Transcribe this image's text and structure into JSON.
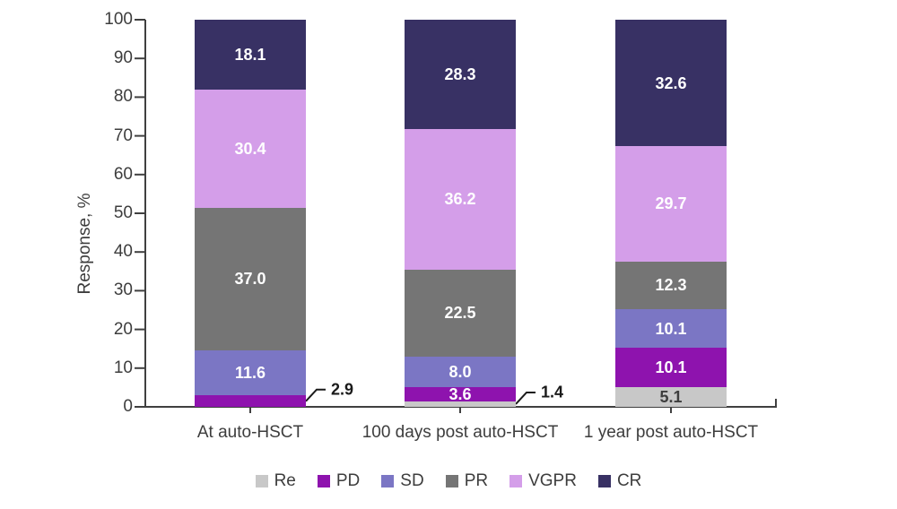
{
  "chart_data": {
    "type": "bar",
    "subtype": "stacked-vertical",
    "title": "",
    "ylabel": "Response, %",
    "xlabel": "",
    "ylim": [
      0,
      100
    ],
    "yticks": [
      0,
      10,
      20,
      30,
      40,
      50,
      60,
      70,
      80,
      90,
      100
    ],
    "grid": false,
    "legend_position": "bottom",
    "categories": [
      "At auto-HSCT",
      "100 days post auto-HSCT",
      "1 year post auto-HSCT"
    ],
    "series": [
      {
        "name": "Re",
        "color": "#c8c8c8",
        "label_color": "#3d3d3d",
        "values": [
          null,
          1.4,
          5.1
        ]
      },
      {
        "name": "PD",
        "color": "#8e13ae",
        "label_color": "#ffffff",
        "values": [
          2.9,
          3.6,
          10.1
        ]
      },
      {
        "name": "SD",
        "color": "#7b76c4",
        "label_color": "#ffffff",
        "values": [
          11.6,
          8.0,
          10.1
        ]
      },
      {
        "name": "PR",
        "color": "#757575",
        "label_color": "#ffffff",
        "values": [
          37.0,
          22.5,
          12.3
        ]
      },
      {
        "name": "VGPR",
        "color": "#d49ee9",
        "label_color": "#ffffff",
        "values": [
          30.4,
          36.2,
          29.7
        ]
      },
      {
        "name": "CR",
        "color": "#383164",
        "label_color": "#ffffff",
        "values": [
          18.1,
          28.3,
          32.6
        ]
      }
    ],
    "callouts": [
      {
        "category_index": 0,
        "series": "PD",
        "text": "2.9"
      },
      {
        "category_index": 1,
        "series": "Re",
        "text": "1.4"
      }
    ],
    "legend": [
      "Re",
      "PD",
      "SD",
      "PR",
      "VGPR",
      "CR"
    ],
    "axis_color": "#404040",
    "text_color": "#3d3d3d",
    "callout_color": "#1a1a1a"
  }
}
